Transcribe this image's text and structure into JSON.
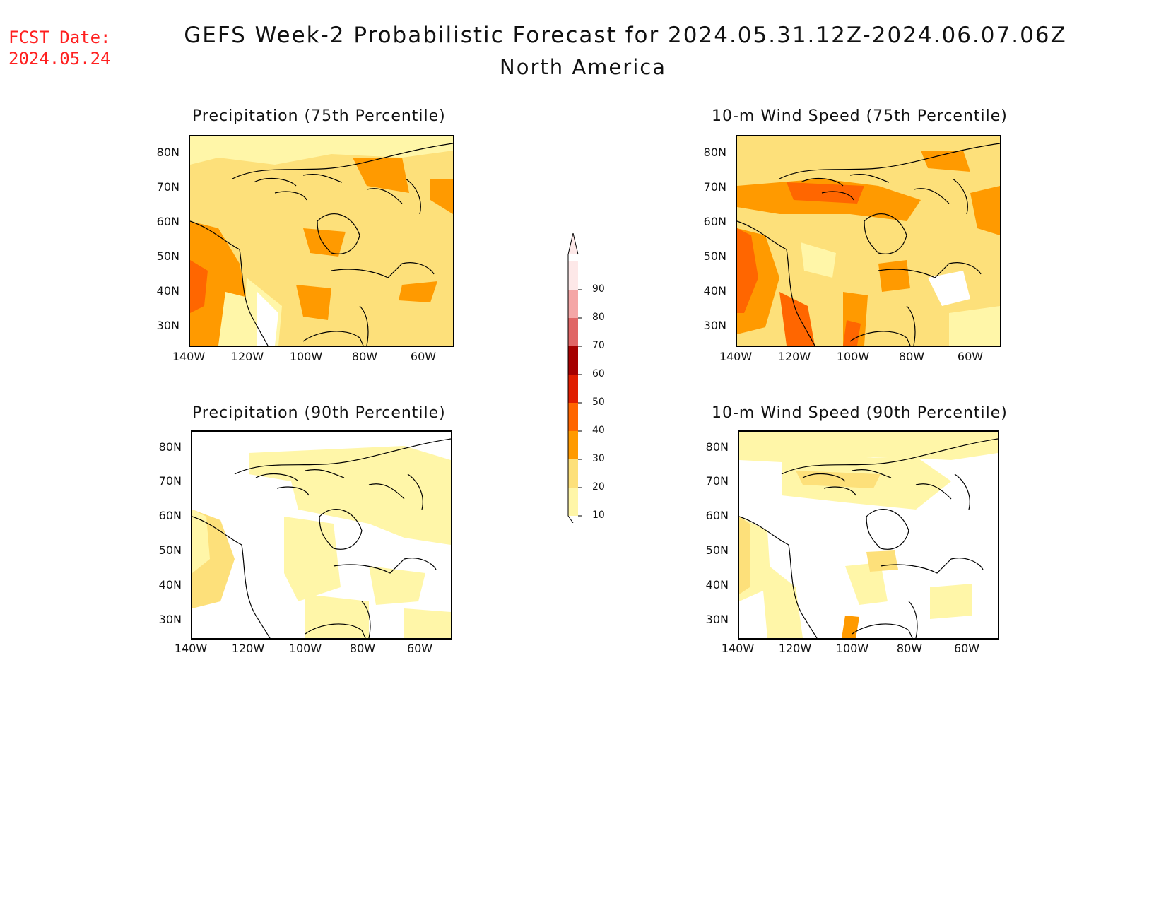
{
  "header": {
    "fcst_line1": "FCST Date:",
    "fcst_line2": "2024.05.24",
    "title": "GEFS Week-2 Probabilistic Forecast for 2024.05.31.12Z-2024.06.07.06Z",
    "subtitle": "North America"
  },
  "panels": [
    {
      "title": "Precipitation (75th Percentile)"
    },
    {
      "title": "10-m Wind Speed (75th Percentile)"
    },
    {
      "title": "Precipitation (90th Percentile)"
    },
    {
      "title": "10-m Wind Speed (90th Percentile)"
    }
  ],
  "axes": {
    "lat_labels": [
      "80N",
      "70N",
      "60N",
      "50N",
      "40N",
      "30N"
    ],
    "lon_labels": [
      "140W",
      "120W",
      "100W",
      "80W",
      "60W"
    ]
  },
  "colorbar": {
    "labels": [
      "90",
      "80",
      "70",
      "60",
      "50",
      "40",
      "30",
      "20",
      "10"
    ],
    "colors": [
      "#fde8e8",
      "#f4a6a6",
      "#e06666",
      "#a50000",
      "#e01e00",
      "#ff6600",
      "#ff9a00",
      "#fde07a",
      "#fff6a8"
    ]
  }
}
